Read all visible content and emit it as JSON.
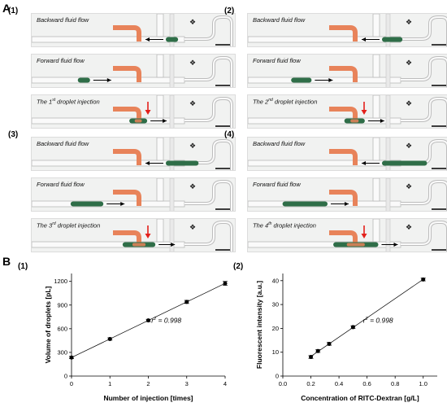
{
  "figure": {
    "section_a": "A",
    "section_b": "B",
    "groups": [
      {
        "label": "(1)",
        "captions": [
          "Backward fluid flow",
          "Forward fluid flow",
          "The 1st droplet injection"
        ],
        "sup": [
          "",
          "",
          "st"
        ],
        "cap_main": [
          "Backward fluid flow",
          "Forward fluid flow",
          "The 1"
        ],
        "cap_tail": [
          "",
          "",
          " droplet injection"
        ],
        "drop_len": 0.06
      },
      {
        "label": "(2)",
        "captions": [
          "Backward fluid flow",
          "Forward fluid flow",
          "The 2nd droplet injection"
        ],
        "sup": [
          "",
          "",
          "nd"
        ],
        "cap_main": [
          "Backward fluid flow",
          "Forward fluid flow",
          "The 2"
        ],
        "cap_tail": [
          "",
          "",
          " droplet injection"
        ],
        "drop_len": 0.1
      },
      {
        "label": "(3)",
        "captions": [
          "Backward fluid flow",
          "Forward fluid flow",
          "The 3rd droplet injection"
        ],
        "sup": [
          "",
          "",
          "rd"
        ],
        "cap_main": [
          "Backward fluid flow",
          "Forward fluid flow",
          "The 3"
        ],
        "cap_tail": [
          "",
          "",
          " droplet injection"
        ],
        "drop_len": 0.16
      },
      {
        "label": "(4)",
        "captions": [
          "Backward fluid flow",
          "Forward fluid flow",
          "The 4th droplet injection"
        ],
        "sup": [
          "",
          "",
          "th"
        ],
        "cap_main": [
          "Backward fluid flow",
          "Forward fluid flow",
          "The 4"
        ],
        "cap_tail": [
          "",
          "",
          " droplet injection"
        ],
        "drop_len": 0.22
      }
    ],
    "colors": {
      "orange": "#e8835a",
      "droplet": "#2f6e48",
      "arrow_red": "#e3201b"
    }
  },
  "chart_data": [
    {
      "type": "scatter",
      "panel_label": "(1)",
      "xlabel": "Number of injection [times]",
      "ylabel": "Volume of droplets [pL]",
      "xlim": [
        0,
        4
      ],
      "ylim": [
        0,
        1300
      ],
      "xticks": [
        0,
        1,
        2,
        3,
        4
      ],
      "yticks": [
        0,
        300,
        600,
        900,
        1200
      ],
      "x": [
        0,
        1,
        2,
        3,
        4
      ],
      "y": [
        235,
        470,
        705,
        940,
        1175
      ],
      "yerr": [
        15,
        15,
        15,
        20,
        25
      ],
      "fit": "linear",
      "annotation_main": "r",
      "annotation_sup": "2",
      "annotation_tail": " = 0.998"
    },
    {
      "type": "scatter",
      "panel_label": "(2)",
      "xlabel": "Concentration of RITC-Dextran [g/L]",
      "ylabel": "Fluorescent intensity [a.u.]",
      "xlim": [
        0,
        1.1
      ],
      "ylim": [
        0,
        43
      ],
      "xticks": [
        0.0,
        0.2,
        0.4,
        0.6,
        0.8,
        1.0
      ],
      "xtick_labels": [
        "0.0",
        "0.2",
        "0.4",
        "0.6",
        "0.8",
        "1.0"
      ],
      "yticks": [
        0,
        10,
        20,
        30,
        40
      ],
      "x": [
        0.2,
        0.25,
        0.33,
        0.5,
        1.0
      ],
      "y": [
        8,
        10.5,
        13.5,
        20.5,
        40.5
      ],
      "yerr": [
        0.6,
        0.6,
        0.6,
        0.6,
        0.6
      ],
      "fit": "linear",
      "annotation_main": "r",
      "annotation_sup": "2",
      "annotation_tail": " = 0.998"
    }
  ]
}
